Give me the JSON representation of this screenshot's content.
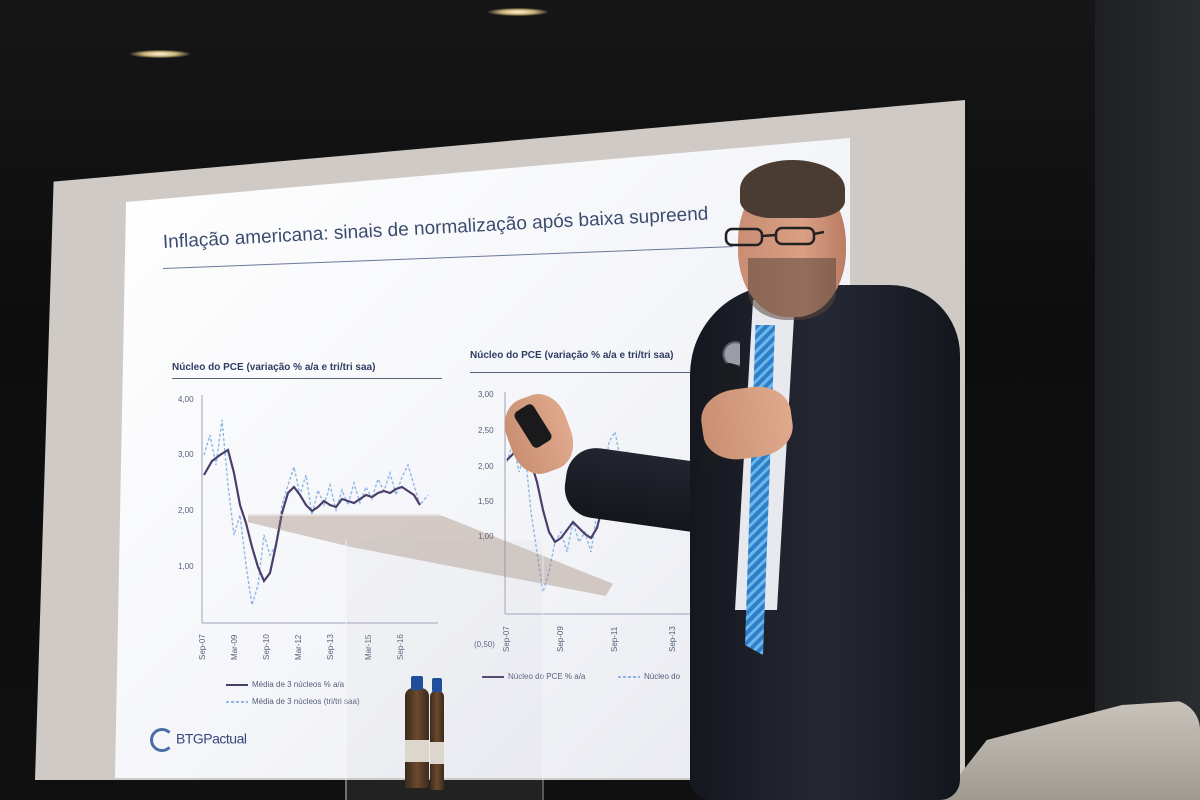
{
  "slide": {
    "title": "Inflação americana: sinais de normalização após baixa supreend",
    "logo_text": "BTGPactual",
    "left_chart": {
      "heading": "Núcleo do PCE (variação % a/a e tri/tri saa)",
      "y_ticks": [
        "4,00",
        "3,00",
        "2,00",
        "1,00"
      ],
      "x_ticks": [
        "Sep-07",
        "Mar-09",
        "Sep-10",
        "Mar-12",
        "Sep-13",
        "Mar-15",
        "Sep-16"
      ],
      "legend": [
        "Média de 3 núcleos % a/a",
        "Média de 3 núcleos (tri/tri saa)"
      ]
    },
    "right_chart": {
      "heading": "Núcleo do PCE (variação % a/a e tri/tri saa)",
      "y_ticks": [
        "3,00",
        "2,50",
        "2,00",
        "1,50",
        "1,00",
        "(0,50)"
      ],
      "x_ticks": [
        "Sep-07",
        "Sep-09",
        "Sep-11",
        "Sep-13"
      ],
      "legend": [
        "Núcleo do PCE % a/a",
        "Núcleo do"
      ]
    }
  },
  "colors": {
    "series_solid": "#4a3f6b",
    "series_dashed": "#8fb6e6",
    "slide_text": "#3c4c70",
    "tie_blue": "#2e7fc8"
  }
}
